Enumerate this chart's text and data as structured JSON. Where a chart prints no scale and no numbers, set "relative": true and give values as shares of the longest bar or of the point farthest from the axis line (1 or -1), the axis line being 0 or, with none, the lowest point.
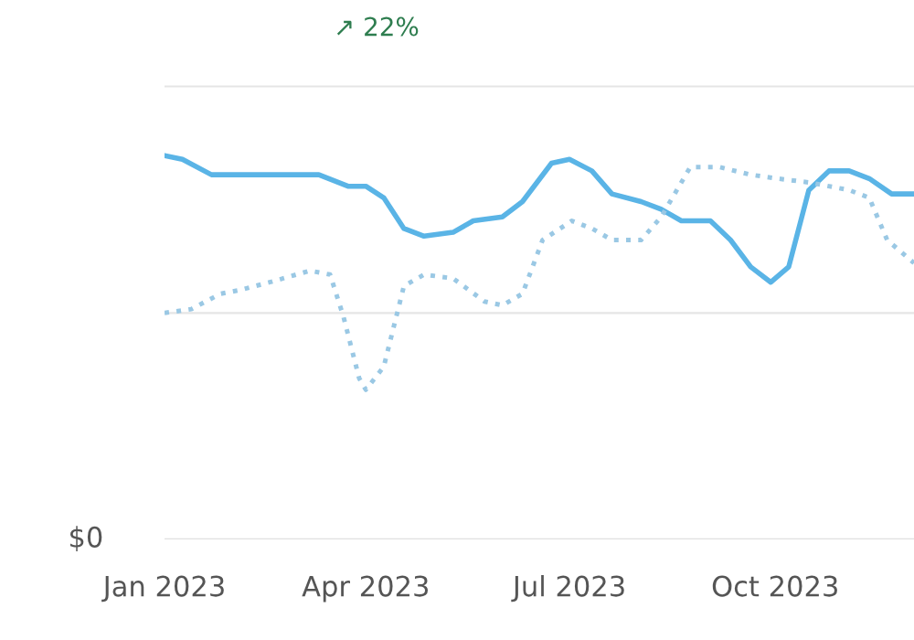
{
  "chart_data": {
    "type": "line",
    "relative": true,
    "annotations": [
      "↗ 22%",
      "$0"
    ],
    "xlim": [
      "2023-01-01",
      "2023-12-02"
    ],
    "xticks": [
      {
        "value": "2023-01-01",
        "label": "Jan 2023"
      },
      {
        "value": "2023-04-01",
        "label": "Apr 2023"
      },
      {
        "value": "2023-07-01",
        "label": "Jul 2023"
      },
      {
        "value": "2023-10-01",
        "label": "Oct 2023"
      }
    ],
    "ref_lines": [
      {
        "axis": "y",
        "value": 0.59,
        "color": "#e5e5e5"
      },
      {
        "axis": "y",
        "value": 1.18,
        "color": "#e5e5e5"
      }
    ],
    "series": [
      {
        "color": "#5ab4e6",
        "line_style": "solid",
        "x": [
          "2023-01-01",
          "2023-01-09",
          "2023-01-22",
          "2023-02-04",
          "2023-02-22",
          "2023-03-11",
          "2023-03-24",
          "2023-04-01",
          "2023-04-09",
          "2023-04-18",
          "2023-04-27",
          "2023-05-10",
          "2023-05-19",
          "2023-06-01",
          "2023-06-10",
          "2023-06-23",
          "2023-07-01",
          "2023-07-11",
          "2023-07-20",
          "2023-08-02",
          "2023-08-11",
          "2023-08-20",
          "2023-09-02",
          "2023-09-11",
          "2023-09-20",
          "2023-09-29",
          "2023-10-07",
          "2023-10-16",
          "2023-10-25",
          "2023-11-03",
          "2023-11-12",
          "2023-11-22",
          "2023-12-02"
        ],
        "values": [
          1.0,
          0.99,
          0.95,
          0.95,
          0.95,
          0.95,
          0.92,
          0.92,
          0.89,
          0.81,
          0.79,
          0.8,
          0.83,
          0.84,
          0.88,
          0.98,
          0.99,
          0.96,
          0.9,
          0.88,
          0.86,
          0.83,
          0.83,
          0.78,
          0.71,
          0.67,
          0.71,
          0.91,
          0.96,
          0.96,
          0.94,
          0.9,
          0.9
        ]
      },
      {
        "type": "line",
        "color": "#9ac8e4",
        "line_style": "dotted",
        "x": [
          "2023-01-01",
          "2023-01-13",
          "2023-01-26",
          "2023-02-04",
          "2023-02-17",
          "2023-03-07",
          "2023-03-16",
          "2023-03-22",
          "2023-03-29",
          "2023-04-01",
          "2023-04-09",
          "2023-04-18",
          "2023-04-27",
          "2023-05-10",
          "2023-05-24",
          "2023-06-01",
          "2023-06-10",
          "2023-06-19",
          "2023-07-02",
          "2023-07-11",
          "2023-07-20",
          "2023-08-02",
          "2023-08-11",
          "2023-08-24",
          "2023-09-06",
          "2023-09-20",
          "2023-10-02",
          "2023-10-16",
          "2023-11-03",
          "2023-11-12",
          "2023-11-20",
          "2023-12-02"
        ],
        "values": [
          0.59,
          0.6,
          0.64,
          0.65,
          0.67,
          0.7,
          0.69,
          0.58,
          0.42,
          0.39,
          0.45,
          0.66,
          0.69,
          0.68,
          0.62,
          0.61,
          0.64,
          0.78,
          0.83,
          0.81,
          0.78,
          0.78,
          0.84,
          0.97,
          0.97,
          0.95,
          0.94,
          0.93,
          0.91,
          0.89,
          0.78,
          0.72
        ]
      }
    ]
  }
}
